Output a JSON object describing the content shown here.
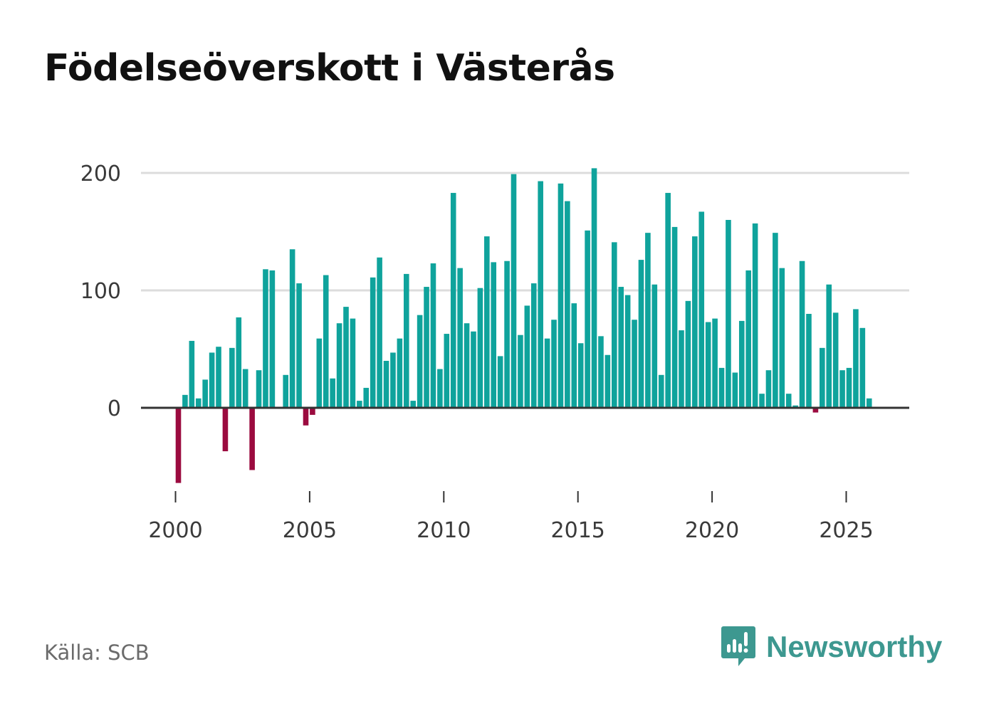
{
  "chart_data": {
    "type": "bar",
    "title": "Födelseöverskott i Västerås",
    "xlabel": "",
    "ylabel": "",
    "ylim": [
      -75,
      215
    ],
    "yticks": [
      0,
      100,
      200
    ],
    "xlim": [
      1999.6,
      2027.3
    ],
    "xticks": [
      2000,
      2005,
      2010,
      2015,
      2020,
      2025
    ],
    "series": [
      {
        "name": "Födelseöverskott",
        "x": [
          2000.0,
          2000.25,
          2000.5,
          2000.75,
          2001.0,
          2001.25,
          2001.5,
          2001.75,
          2002.0,
          2002.25,
          2002.5,
          2002.75,
          2003.0,
          2003.25,
          2003.5,
          2003.75,
          2004.0,
          2004.25,
          2004.5,
          2004.75,
          2005.0,
          2005.25,
          2005.5,
          2005.75,
          2006.0,
          2006.25,
          2006.5,
          2006.75,
          2007.0,
          2007.25,
          2007.5,
          2007.75,
          2008.0,
          2008.25,
          2008.5,
          2008.75,
          2009.0,
          2009.25,
          2009.5,
          2009.75,
          2010.0,
          2010.25,
          2010.5,
          2010.75,
          2011.0,
          2011.25,
          2011.5,
          2011.75,
          2012.0,
          2012.25,
          2012.5,
          2012.75,
          2013.0,
          2013.25,
          2013.5,
          2013.75,
          2014.0,
          2014.25,
          2014.5,
          2014.75,
          2015.0,
          2015.25,
          2015.5,
          2015.75,
          2016.0,
          2016.25,
          2016.5,
          2016.75,
          2017.0,
          2017.25,
          2017.5,
          2017.75,
          2018.0,
          2018.25,
          2018.5,
          2018.75,
          2019.0,
          2019.25,
          2019.5,
          2019.75,
          2020.0,
          2020.25,
          2020.5,
          2020.75,
          2021.0,
          2021.25,
          2021.5,
          2021.75,
          2022.0,
          2022.25,
          2022.5,
          2022.75,
          2023.0,
          2023.25,
          2023.5,
          2023.75,
          2024.0,
          2024.25,
          2024.5,
          2024.75,
          2025.0,
          2025.25,
          2025.5,
          2025.75
        ],
        "values": [
          -64,
          11,
          57,
          8,
          24,
          47,
          52,
          -37,
          51,
          77,
          33,
          -53,
          32,
          118,
          117,
          0,
          28,
          135,
          106,
          -15,
          -6,
          59,
          113,
          25,
          72,
          86,
          76,
          6,
          17,
          111,
          128,
          40,
          47,
          59,
          114,
          6,
          79,
          103,
          123,
          33,
          63,
          183,
          119,
          72,
          65,
          102,
          146,
          124,
          44,
          125,
          199,
          62,
          87,
          106,
          193,
          59,
          75,
          191,
          176,
          89,
          55,
          151,
          204,
          61,
          45,
          141,
          103,
          96,
          75,
          126,
          149,
          105,
          28,
          183,
          154,
          66,
          91,
          146,
          167,
          73,
          76,
          34,
          160,
          30,
          74,
          117,
          157,
          12,
          32,
          149,
          119,
          12,
          2,
          125,
          80,
          -4,
          51,
          105,
          81,
          32,
          34,
          84,
          68,
          8
        ]
      }
    ],
    "colors": {
      "positive": "#0fa39c",
      "negative": "#9b0b3f"
    }
  },
  "source": "Källa: SCB",
  "brand": {
    "name": "Newsworthy",
    "icon": "newsworthy-logo-icon",
    "color": "#3d9890"
  }
}
